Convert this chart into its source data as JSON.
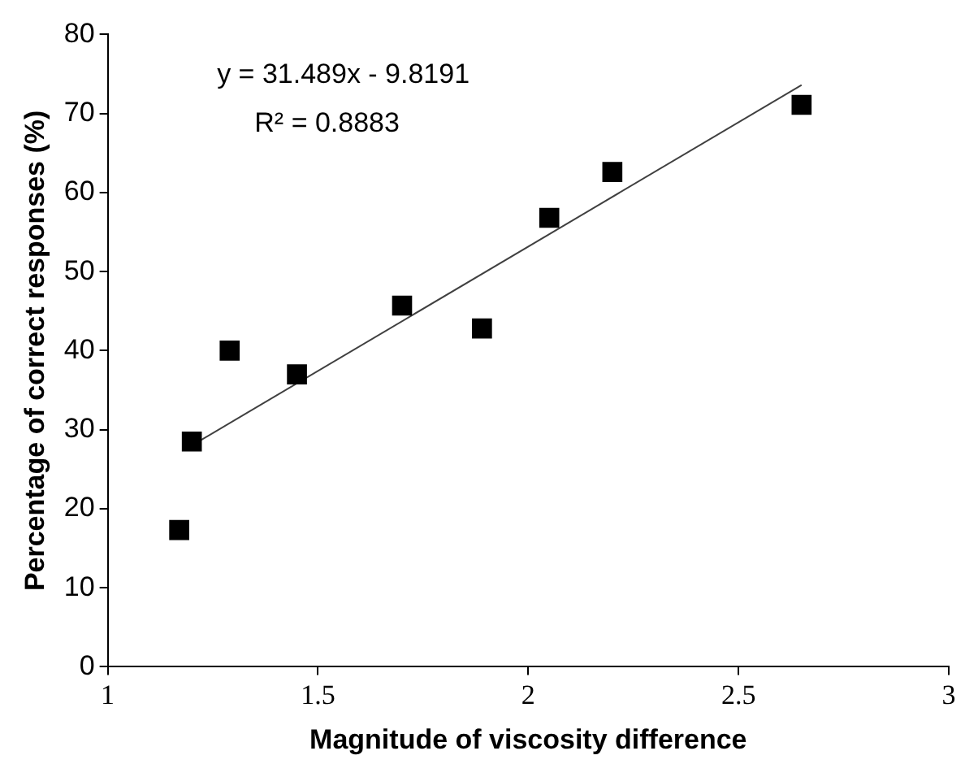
{
  "chart_data": {
    "type": "scatter",
    "xlabel": "Magnitude of viscosity difference",
    "ylabel": "Percentage of correct responses (%)",
    "annotations": [
      "y = 31.489x - 9.8191",
      "R² = 0.8883"
    ],
    "series": [
      {
        "type": "scatter",
        "marker": "square",
        "color": "#000000",
        "x": [
          1.17,
          1.2,
          1.29,
          1.45,
          1.7,
          1.89,
          2.05,
          2.2,
          2.65
        ],
        "values": [
          17.3,
          28.5,
          40,
          37,
          45.7,
          42.8,
          56.8,
          62.6,
          71.1
        ]
      },
      {
        "type": "line",
        "marker": "none",
        "color": "#404040",
        "x": [
          1.2,
          2.65
        ],
        "values": [
          28,
          73.6
        ]
      }
    ],
    "xlim": [
      1,
      3
    ],
    "xticks": [
      1,
      1.5,
      2,
      2.5,
      3
    ],
    "ylim": [
      0,
      80
    ],
    "yticks": [
      0,
      10,
      20,
      30,
      40,
      50,
      60,
      70,
      80
    ],
    "legend": false
  }
}
